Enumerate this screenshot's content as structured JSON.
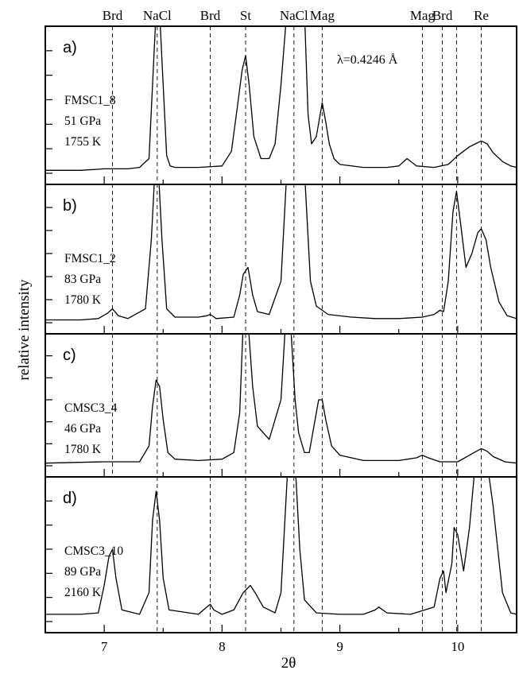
{
  "chart_data": {
    "type": "line",
    "xlabel": "2θ",
    "ylabel": "relative intensity",
    "xlim": [
      6.5,
      10.5
    ],
    "x_ticks": [
      7,
      8,
      9,
      10
    ],
    "annotation": "λ=0.4246 Å",
    "phase_markers": [
      {
        "label": "Brd",
        "x": 7.07
      },
      {
        "label": "NaCl",
        "x": 7.45
      },
      {
        "label": "Brd",
        "x": 7.9
      },
      {
        "label": "St",
        "x": 8.2
      },
      {
        "label": "NaCl",
        "x": 8.61
      },
      {
        "label": "Mag",
        "x": 8.85
      },
      {
        "label": "Mag",
        "x": 9.7
      },
      {
        "label": "Brd",
        "x": 9.87
      },
      {
        "label": "Re",
        "x": 10.2
      }
    ],
    "marker_lines": [
      {
        "x": 7.07,
        "panels": [
          0,
          1,
          2
        ]
      },
      {
        "x": 7.45,
        "panels": [
          0,
          1,
          2,
          3
        ]
      },
      {
        "x": 7.9,
        "panels": [
          0,
          1,
          2,
          3
        ]
      },
      {
        "x": 8.2,
        "panels": [
          0,
          1,
          2,
          3
        ]
      },
      {
        "x": 8.61,
        "panels": [
          0,
          1,
          2,
          3
        ]
      },
      {
        "x": 8.85,
        "panels": [
          0,
          1,
          2,
          3
        ]
      },
      {
        "x": 9.7,
        "panels": [
          0,
          1,
          2,
          3
        ]
      },
      {
        "x": 9.87,
        "panels": [
          0,
          1,
          2,
          3
        ]
      },
      {
        "x": 9.99,
        "panels": [
          0,
          1,
          2,
          3
        ]
      },
      {
        "x": 10.2,
        "panels": [
          0,
          1,
          2,
          3
        ]
      }
    ],
    "panels": [
      {
        "tag": "a)",
        "sample": "FMSC1_8",
        "pressure": "51 GPa",
        "temperature": "1755 K",
        "x": [
          6.5,
          6.8,
          7.0,
          7.2,
          7.3,
          7.38,
          7.41,
          7.44,
          7.47,
          7.5,
          7.53,
          7.56,
          7.6,
          7.8,
          8.0,
          8.08,
          8.13,
          8.17,
          8.2,
          8.23,
          8.27,
          8.33,
          8.4,
          8.45,
          8.5,
          8.55,
          8.6,
          8.65,
          8.7,
          8.73,
          8.76,
          8.8,
          8.85,
          8.88,
          8.91,
          8.95,
          9.0,
          9.2,
          9.4,
          9.5,
          9.57,
          9.65,
          9.8,
          9.92,
          10.0,
          10.1,
          10.15,
          10.2,
          10.25,
          10.3,
          10.38,
          10.45,
          10.5
        ],
        "y": [
          0.02,
          0.02,
          0.03,
          0.03,
          0.04,
          0.1,
          0.6,
          1.1,
          1.1,
          0.6,
          0.12,
          0.05,
          0.04,
          0.04,
          0.05,
          0.15,
          0.45,
          0.7,
          0.8,
          0.6,
          0.25,
          0.1,
          0.1,
          0.2,
          0.6,
          1.1,
          1.1,
          1.1,
          1.1,
          0.4,
          0.2,
          0.25,
          0.48,
          0.35,
          0.2,
          0.1,
          0.06,
          0.04,
          0.04,
          0.05,
          0.1,
          0.05,
          0.04,
          0.06,
          0.12,
          0.18,
          0.2,
          0.22,
          0.2,
          0.14,
          0.08,
          0.05,
          0.04
        ]
      },
      {
        "tag": "b)",
        "sample": "FMSC1_2",
        "pressure": "83 GPa",
        "temperature": "1780 K",
        "x": [
          6.5,
          6.8,
          6.95,
          7.03,
          7.07,
          7.12,
          7.2,
          7.35,
          7.4,
          7.43,
          7.46,
          7.49,
          7.53,
          7.6,
          7.8,
          7.87,
          7.9,
          7.95,
          8.1,
          8.15,
          8.18,
          8.22,
          8.26,
          8.3,
          8.4,
          8.5,
          8.55,
          8.6,
          8.7,
          8.75,
          8.8,
          8.9,
          9.1,
          9.3,
          9.5,
          9.7,
          9.8,
          9.85,
          9.88,
          9.92,
          9.96,
          9.99,
          10.02,
          10.07,
          10.12,
          10.17,
          10.2,
          10.24,
          10.28,
          10.35,
          10.42,
          10.5
        ],
        "y": [
          0.02,
          0.02,
          0.03,
          0.07,
          0.1,
          0.05,
          0.03,
          0.1,
          0.6,
          1.1,
          1.1,
          0.6,
          0.1,
          0.04,
          0.04,
          0.05,
          0.06,
          0.03,
          0.04,
          0.2,
          0.35,
          0.4,
          0.2,
          0.08,
          0.06,
          0.3,
          1.1,
          1.1,
          1.1,
          0.3,
          0.12,
          0.06,
          0.04,
          0.03,
          0.03,
          0.04,
          0.06,
          0.09,
          0.08,
          0.3,
          0.8,
          0.95,
          0.75,
          0.4,
          0.5,
          0.65,
          0.68,
          0.6,
          0.4,
          0.15,
          0.05,
          0.03
        ]
      },
      {
        "tag": "c)",
        "sample": "CMSC3_4",
        "pressure": "46 GPa",
        "temperature": "1780 K",
        "x": [
          6.5,
          7.0,
          7.3,
          7.38,
          7.41,
          7.44,
          7.47,
          7.5,
          7.54,
          7.6,
          7.8,
          8.0,
          8.1,
          8.15,
          8.18,
          8.22,
          8.26,
          8.3,
          8.4,
          8.5,
          8.54,
          8.58,
          8.62,
          8.65,
          8.7,
          8.74,
          8.78,
          8.82,
          8.85,
          8.88,
          8.93,
          9.0,
          9.2,
          9.5,
          9.65,
          9.7,
          9.75,
          9.85,
          10.0,
          10.1,
          10.2,
          10.25,
          10.3,
          10.4,
          10.5
        ],
        "y": [
          0.02,
          0.03,
          0.03,
          0.15,
          0.45,
          0.65,
          0.6,
          0.35,
          0.1,
          0.05,
          0.04,
          0.05,
          0.1,
          0.4,
          1.1,
          1.1,
          0.6,
          0.3,
          0.2,
          0.5,
          1.1,
          1.1,
          0.5,
          0.25,
          0.1,
          0.1,
          0.3,
          0.5,
          0.5,
          0.35,
          0.15,
          0.08,
          0.04,
          0.04,
          0.06,
          0.08,
          0.06,
          0.03,
          0.03,
          0.08,
          0.13,
          0.11,
          0.07,
          0.03,
          0.02
        ]
      },
      {
        "tag": "d)",
        "sample": "CMSC3_10",
        "pressure": "89 GPa",
        "temperature": "2160 K",
        "x": [
          6.5,
          6.8,
          6.95,
          7.0,
          7.04,
          7.07,
          7.1,
          7.15,
          7.3,
          7.38,
          7.41,
          7.44,
          7.47,
          7.5,
          7.55,
          7.8,
          7.87,
          7.9,
          7.93,
          8.0,
          8.1,
          8.18,
          8.24,
          8.28,
          8.35,
          8.45,
          8.5,
          8.56,
          8.62,
          8.66,
          8.7,
          8.8,
          9.0,
          9.2,
          9.3,
          9.33,
          9.4,
          9.6,
          9.8,
          9.85,
          9.88,
          9.9,
          9.95,
          9.97,
          10.0,
          10.05,
          10.1,
          10.15,
          10.2,
          10.25,
          10.3,
          10.38,
          10.45,
          10.5
        ],
        "y": [
          0.05,
          0.05,
          0.06,
          0.25,
          0.45,
          0.5,
          0.3,
          0.08,
          0.05,
          0.2,
          0.7,
          0.9,
          0.7,
          0.3,
          0.08,
          0.05,
          0.1,
          0.12,
          0.08,
          0.05,
          0.08,
          0.2,
          0.25,
          0.2,
          0.1,
          0.06,
          0.2,
          1.1,
          1.1,
          0.5,
          0.15,
          0.06,
          0.05,
          0.05,
          0.08,
          0.1,
          0.06,
          0.05,
          0.1,
          0.3,
          0.35,
          0.2,
          0.4,
          0.65,
          0.6,
          0.35,
          0.65,
          1.1,
          1.1,
          1.1,
          0.8,
          0.2,
          0.06,
          0.05
        ]
      }
    ]
  }
}
